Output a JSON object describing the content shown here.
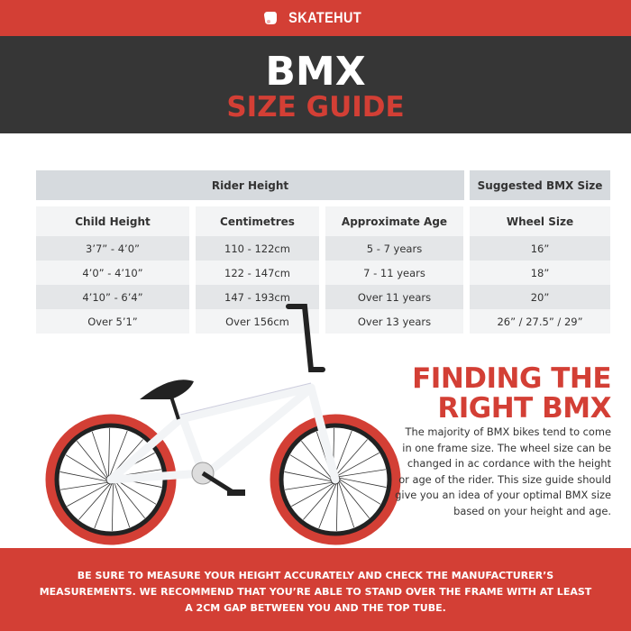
{
  "brand": {
    "name": "SKATEHUT",
    "logo_icon": "hand-icon"
  },
  "hero": {
    "title": "BMX",
    "subtitle": "SIZE GUIDE"
  },
  "table": {
    "group_headers": [
      "Rider Height",
      "Suggested BMX Size"
    ],
    "columns": [
      "Child Height",
      "Centimetres",
      "Approximate Age",
      "Wheel Size"
    ],
    "rows": [
      [
        "3’7” - 4’0”",
        "110 - 122cm",
        "5 - 7 years",
        "16”"
      ],
      [
        "4’0” - 4’10”",
        "122 - 147cm",
        "7 - 11 years",
        "18”"
      ],
      [
        "4’10” - 6’4”",
        "147 - 193cm",
        "Over 11 years",
        "20”"
      ],
      [
        "Over 5’1”",
        "Over 156cm",
        "Over 13 years",
        "26” / 27.5” / 29”"
      ]
    ]
  },
  "info": {
    "heading_line1": "FINDING THE",
    "heading_line2": "RIGHT BMX",
    "body": "The majority of BMX bikes tend to come in one frame size. The wheel size can be changed in ac cordance with the height or age of the rider. This size guide should give you an idea of your optimal BMX size based on your height and age."
  },
  "footer": {
    "text": "BE SURE TO MEASURE YOUR HEIGHT ACCURATELY AND CHECK THE MANUFACTURER’S MEASUREMENTS. WE RECOMMEND THAT YOU’RE ABLE TO STAND OVER THE FRAME WITH AT LEAST A 2CM GAP BETWEEN YOU AND THE TOP TUBE."
  },
  "colors": {
    "brand_red": "#d33f35",
    "dark": "#363636",
    "header_gray": "#d6dade"
  }
}
